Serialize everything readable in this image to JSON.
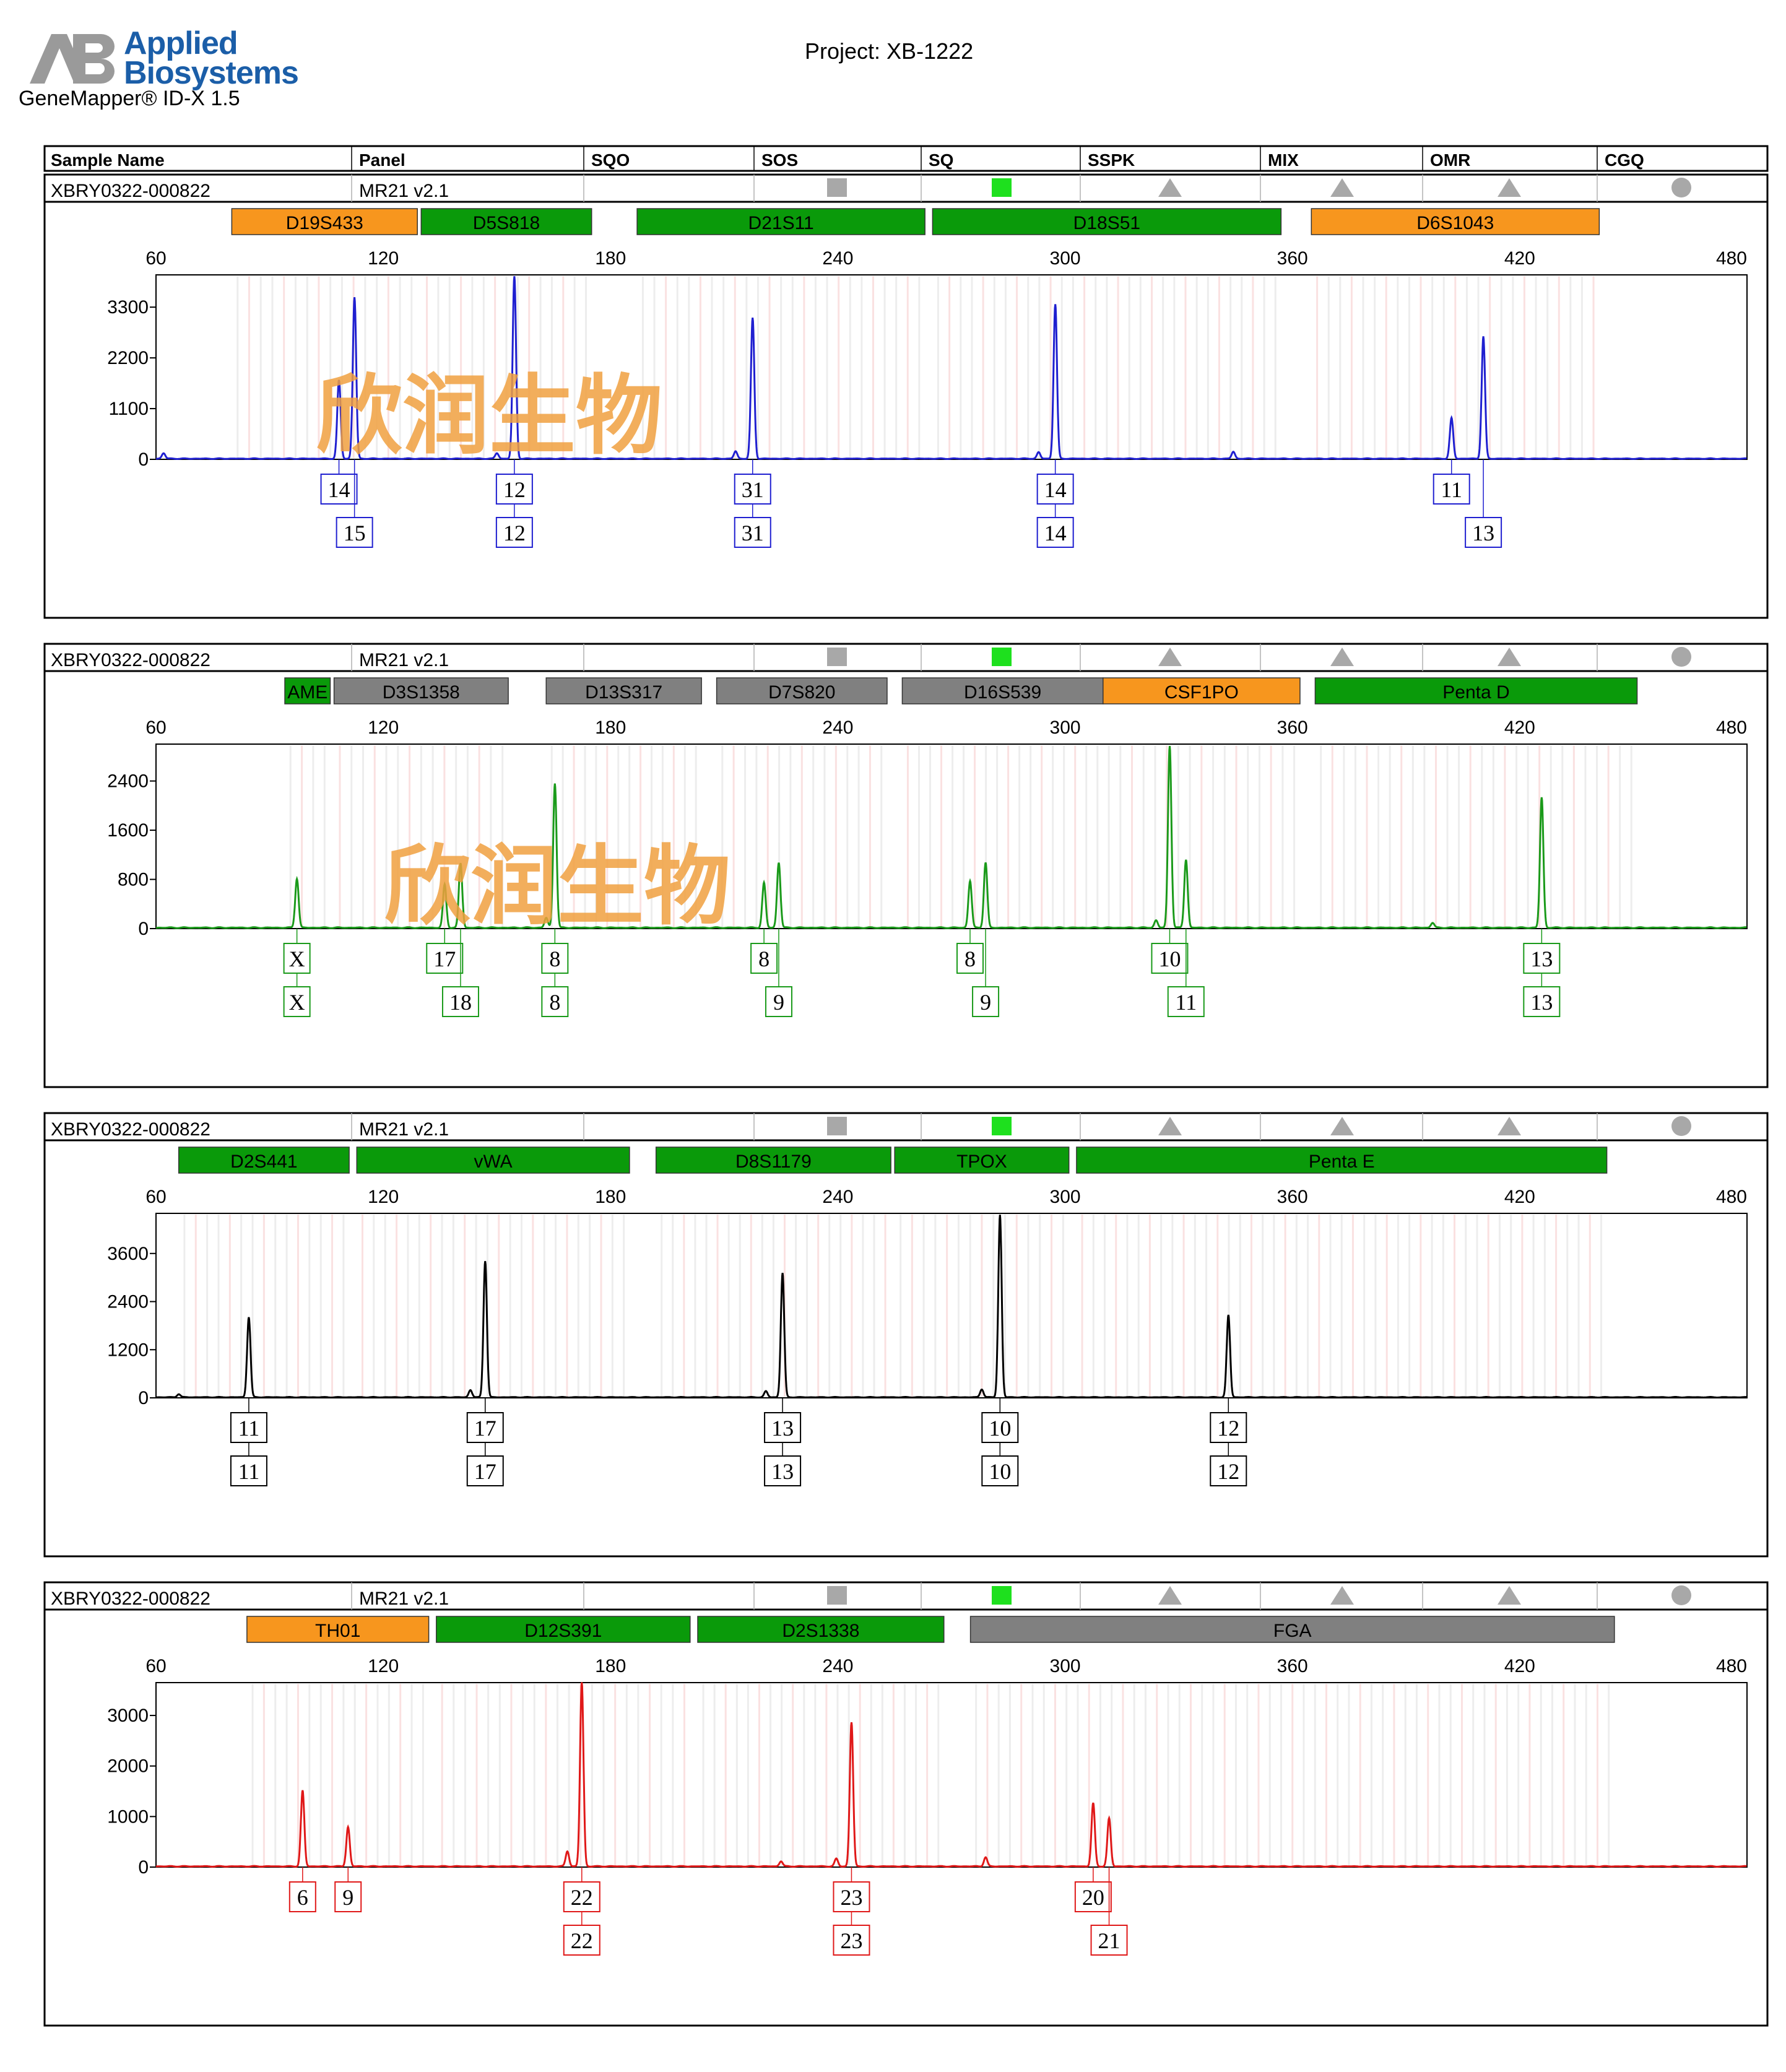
{
  "header": {
    "brand_line1": "Applied",
    "brand_line2": "Biosystems",
    "app_name": "GeneMapper® ID-X  1.5",
    "project": "Project: XB-1222"
  },
  "table_header": [
    "Sample Name",
    "Panel",
    "SQO",
    "SOS",
    "SQ",
    "SSPK",
    "MIX",
    "OMR",
    "CGQ"
  ],
  "watermark": "欣润生物",
  "colors": {
    "blue": "#1f1fd0",
    "green": "#1a9a1a",
    "black": "#000000",
    "red": "#e01818",
    "marker_orange": "#f7961e",
    "marker_green": "#0a9a0a",
    "marker_gray": "#808080",
    "watermark": "#f0a040"
  },
  "chart_data": [
    {
      "type": "line",
      "sample_name": "XBRY0322-000822",
      "panel": "MR21  v2.1",
      "dye": "blue",
      "x_ticks": [
        60,
        120,
        180,
        240,
        300,
        360,
        420,
        480
      ],
      "xlim": [
        60,
        480
      ],
      "y_ticks": [
        0,
        1100,
        2200,
        3300
      ],
      "ylim": [
        0,
        4000
      ],
      "markers": [
        {
          "name": "D19S433",
          "start": 80,
          "end": 129,
          "color": "orange"
        },
        {
          "name": "D5S818",
          "start": 130,
          "end": 175,
          "color": "green"
        },
        {
          "name": "D21S11",
          "start": 187,
          "end": 263,
          "color": "green"
        },
        {
          "name": "D18S51",
          "start": 265,
          "end": 357,
          "color": "green"
        },
        {
          "name": "D6S1043",
          "start": 365,
          "end": 441,
          "color": "orange"
        }
      ],
      "peaks": [
        {
          "x": 108.3,
          "y": 1700
        },
        {
          "x": 112.4,
          "y": 3500
        },
        {
          "x": 154.6,
          "y": 3950
        },
        {
          "x": 217.5,
          "y": 3050
        },
        {
          "x": 297.4,
          "y": 3350
        },
        {
          "x": 344.4,
          "y": 150
        },
        {
          "x": 402.0,
          "y": 880
        },
        {
          "x": 410.4,
          "y": 2650
        },
        {
          "x": 62,
          "y": 120
        },
        {
          "x": 150,
          "y": 120
        },
        {
          "x": 213,
          "y": 160
        },
        {
          "x": 293,
          "y": 140
        }
      ],
      "alleles": [
        {
          "x": 108.3,
          "labels": [
            "14"
          ]
        },
        {
          "x": 112.4,
          "labels": [
            "",
            "15"
          ]
        },
        {
          "x": 154.6,
          "labels": [
            "12",
            "12"
          ]
        },
        {
          "x": 217.5,
          "labels": [
            "31",
            "31"
          ]
        },
        {
          "x": 297.4,
          "labels": [
            "14",
            "14"
          ]
        },
        {
          "x": 402.0,
          "labels": [
            "11"
          ]
        },
        {
          "x": 410.4,
          "labels": [
            "",
            "13"
          ]
        }
      ]
    },
    {
      "type": "line",
      "sample_name": "XBRY0322-000822",
      "panel": "MR21  v2.1",
      "dye": "green",
      "x_ticks": [
        60,
        120,
        180,
        240,
        300,
        360,
        420,
        480
      ],
      "xlim": [
        60,
        480
      ],
      "y_ticks": [
        0,
        800,
        1600,
        2400
      ],
      "ylim": [
        0,
        3000
      ],
      "markers": [
        {
          "name": "AME",
          "start": 94,
          "end": 106,
          "color": "green"
        },
        {
          "name": "D3S1358",
          "start": 107,
          "end": 153,
          "color": "gray"
        },
        {
          "name": "D13S317",
          "start": 163,
          "end": 204,
          "color": "gray"
        },
        {
          "name": "D7S820",
          "start": 208,
          "end": 253,
          "color": "gray"
        },
        {
          "name": "D16S539",
          "start": 257,
          "end": 310,
          "color": "gray"
        },
        {
          "name": "CSF1PO",
          "start": 310,
          "end": 362,
          "color": "orange"
        },
        {
          "name": "Penta D",
          "start": 366,
          "end": 451,
          "color": "green"
        }
      ],
      "peaks": [
        {
          "x": 97.2,
          "y": 800
        },
        {
          "x": 136.2,
          "y": 700
        },
        {
          "x": 140.4,
          "y": 1050
        },
        {
          "x": 165.3,
          "y": 2350
        },
        {
          "x": 220.5,
          "y": 730
        },
        {
          "x": 224.4,
          "y": 1060
        },
        {
          "x": 274.9,
          "y": 760
        },
        {
          "x": 279.0,
          "y": 1060
        },
        {
          "x": 327.6,
          "y": 2960
        },
        {
          "x": 331.9,
          "y": 1110
        },
        {
          "x": 425.8,
          "y": 2120
        },
        {
          "x": 324,
          "y": 120
        },
        {
          "x": 163,
          "y": 160
        },
        {
          "x": 397,
          "y": 80
        }
      ],
      "alleles": [
        {
          "x": 97.2,
          "labels": [
            "X",
            "X"
          ]
        },
        {
          "x": 136.2,
          "labels": [
            "17"
          ]
        },
        {
          "x": 140.4,
          "labels": [
            "",
            "18"
          ]
        },
        {
          "x": 165.3,
          "labels": [
            "8",
            "8"
          ]
        },
        {
          "x": 220.5,
          "labels": [
            "8"
          ]
        },
        {
          "x": 224.4,
          "labels": [
            "",
            "9"
          ]
        },
        {
          "x": 274.9,
          "labels": [
            "8"
          ]
        },
        {
          "x": 279.0,
          "labels": [
            "",
            "9"
          ]
        },
        {
          "x": 327.6,
          "labels": [
            "10"
          ]
        },
        {
          "x": 331.9,
          "labels": [
            "",
            "11"
          ]
        },
        {
          "x": 425.8,
          "labels": [
            "13",
            "13"
          ]
        }
      ]
    },
    {
      "type": "line",
      "sample_name": "XBRY0322-000822",
      "panel": "MR21  v2.1",
      "dye": "black",
      "x_ticks": [
        60,
        120,
        180,
        240,
        300,
        360,
        420,
        480
      ],
      "xlim": [
        60,
        480
      ],
      "y_ticks": [
        0,
        1200,
        2400,
        3600
      ],
      "ylim": [
        0,
        4600
      ],
      "markers": [
        {
          "name": "D2S441",
          "start": 66,
          "end": 111,
          "color": "green"
        },
        {
          "name": "vWA",
          "start": 113,
          "end": 185,
          "color": "green"
        },
        {
          "name": "D8S1179",
          "start": 192,
          "end": 254,
          "color": "green"
        },
        {
          "name": "TPOX",
          "start": 255,
          "end": 301,
          "color": "green"
        },
        {
          "name": "Penta E",
          "start": 303,
          "end": 443,
          "color": "green"
        }
      ],
      "peaks": [
        {
          "x": 84.5,
          "y": 2000
        },
        {
          "x": 146.9,
          "y": 3400
        },
        {
          "x": 225.4,
          "y": 3100
        },
        {
          "x": 282.8,
          "y": 4550
        },
        {
          "x": 343.1,
          "y": 2050
        },
        {
          "x": 66,
          "y": 80
        },
        {
          "x": 143,
          "y": 180
        },
        {
          "x": 221,
          "y": 150
        },
        {
          "x": 278,
          "y": 200
        }
      ],
      "alleles": [
        {
          "x": 84.5,
          "labels": [
            "11",
            "11"
          ]
        },
        {
          "x": 146.9,
          "labels": [
            "17",
            "17"
          ]
        },
        {
          "x": 225.4,
          "labels": [
            "13",
            "13"
          ]
        },
        {
          "x": 282.8,
          "labels": [
            "10",
            "10"
          ]
        },
        {
          "x": 343.1,
          "labels": [
            "12",
            "12"
          ]
        }
      ]
    },
    {
      "type": "line",
      "sample_name": "XBRY0322-000822",
      "panel": "MR21  v2.1",
      "dye": "red",
      "x_ticks": [
        60,
        120,
        180,
        240,
        300,
        360,
        420,
        480
      ],
      "xlim": [
        60,
        480
      ],
      "y_ticks": [
        0,
        1000,
        2000,
        3000
      ],
      "ylim": [
        0,
        3650
      ],
      "markers": [
        {
          "name": "TH01",
          "start": 84,
          "end": 132,
          "color": "orange"
        },
        {
          "name": "D12S391",
          "start": 134,
          "end": 201,
          "color": "green"
        },
        {
          "name": "D2S1338",
          "start": 203,
          "end": 268,
          "color": "green"
        },
        {
          "name": "FGA",
          "start": 275,
          "end": 445,
          "color": "gray"
        }
      ],
      "peaks": [
        {
          "x": 98.7,
          "y": 1500
        },
        {
          "x": 110.7,
          "y": 780
        },
        {
          "x": 172.4,
          "y": 3650
        },
        {
          "x": 243.6,
          "y": 2850
        },
        {
          "x": 307.4,
          "y": 1250
        },
        {
          "x": 311.6,
          "y": 950
        },
        {
          "x": 168.6,
          "y": 300
        },
        {
          "x": 279,
          "y": 180
        },
        {
          "x": 239.6,
          "y": 150
        },
        {
          "x": 225,
          "y": 100
        }
      ],
      "alleles": [
        {
          "x": 98.7,
          "labels": [
            "6"
          ]
        },
        {
          "x": 110.7,
          "labels": [
            "9"
          ]
        },
        {
          "x": 172.4,
          "labels": [
            "22",
            "22"
          ]
        },
        {
          "x": 243.6,
          "labels": [
            "23",
            "23"
          ]
        },
        {
          "x": 307.4,
          "labels": [
            "20"
          ]
        },
        {
          "x": 311.6,
          "labels": [
            "",
            "21"
          ]
        }
      ]
    }
  ]
}
